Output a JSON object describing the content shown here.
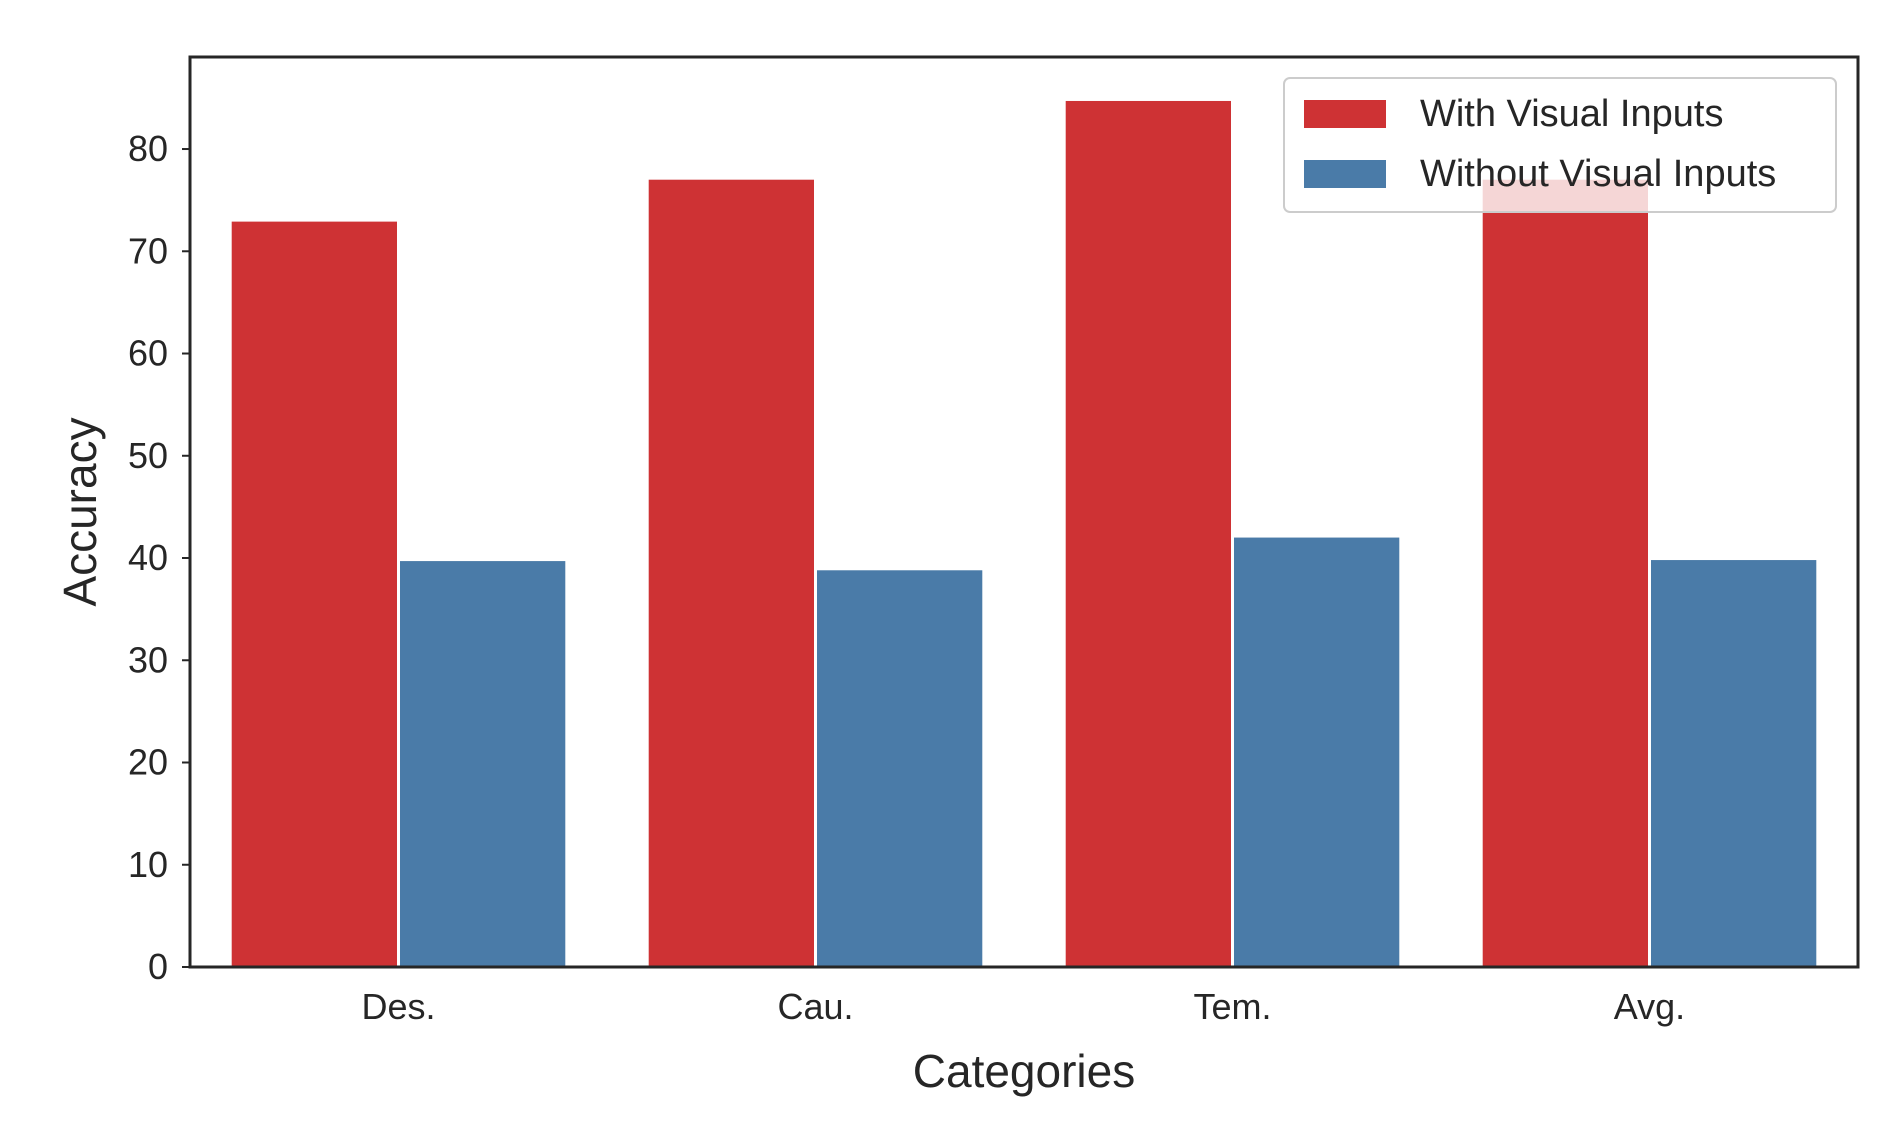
{
  "chart_data": {
    "type": "bar",
    "title": "",
    "xlabel": "Categories",
    "ylabel": "Accuracy",
    "categories": [
      "Des.",
      "Cau.",
      "Tem.",
      "Avg."
    ],
    "series": [
      {
        "name": "With Visual Inputs",
        "color": "#CE3234",
        "values": [
          72.9,
          77.0,
          84.7,
          77.0
        ]
      },
      {
        "name": "Without Visual Inputs",
        "color": "#4A7BA8",
        "values": [
          39.7,
          38.8,
          42.0,
          39.8
        ]
      }
    ],
    "ylim": [
      0,
      89
    ],
    "yticks": [
      0,
      10,
      20,
      30,
      40,
      50,
      60,
      70,
      80
    ],
    "grid": false,
    "legend_position": "top-right"
  }
}
